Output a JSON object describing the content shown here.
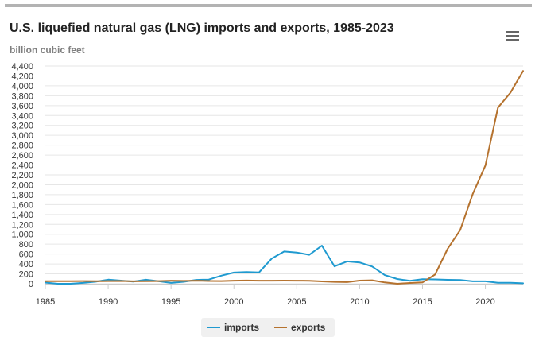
{
  "chart_data": {
    "type": "line",
    "title": "U.S. liquefied natural gas (LNG) imports and exports, 1985-2023",
    "ylabel": "billion cubic feet",
    "xlabel": "",
    "x": [
      1985,
      1986,
      1987,
      1988,
      1989,
      1990,
      1991,
      1992,
      1993,
      1994,
      1995,
      1996,
      1997,
      1998,
      1999,
      2000,
      2001,
      2002,
      2003,
      2004,
      2005,
      2006,
      2007,
      2008,
      2009,
      2010,
      2011,
      2012,
      2013,
      2014,
      2015,
      2016,
      2017,
      2018,
      2019,
      2020,
      2021,
      2022,
      2023
    ],
    "xlim": [
      1985,
      2023
    ],
    "ylim": [
      0,
      4400
    ],
    "x_ticks": [
      1985,
      1990,
      1995,
      2000,
      2005,
      2010,
      2015,
      2020
    ],
    "y_ticks": [
      0,
      200,
      400,
      600,
      800,
      1000,
      1200,
      1400,
      1600,
      1800,
      2000,
      2200,
      2400,
      2600,
      2800,
      3000,
      3200,
      3400,
      3600,
      3800,
      4000,
      4200,
      4400
    ],
    "x_tick_labels": [
      "1985",
      "1990",
      "1995",
      "2000",
      "2005",
      "2010",
      "2015",
      "2020"
    ],
    "y_tick_labels": [
      "0",
      "200",
      "400",
      "600",
      "800",
      "1,000",
      "1,200",
      "1,400",
      "1,600",
      "1,800",
      "2,000",
      "2,200",
      "2,400",
      "2,600",
      "2,800",
      "3,000",
      "3,200",
      "3,400",
      "3,600",
      "3,800",
      "4,000",
      "4,200",
      "4,400"
    ],
    "grid": true,
    "legend_position": "bottom-center",
    "series": [
      {
        "name": "imports",
        "color": "#1f9ad0",
        "values": [
          24,
          0,
          0,
          18,
          42,
          84,
          64,
          43,
          82,
          51,
          18,
          40,
          78,
          85,
          163,
          226,
          238,
          229,
          507,
          652,
          631,
          584,
          771,
          352,
          452,
          431,
          349,
          175,
          97,
          59,
          91,
          88,
          80,
          77,
          50,
          50,
          20,
          20,
          10
        ]
      },
      {
        "name": "exports",
        "color": "#b5722e",
        "values": [
          53,
          52,
          53,
          55,
          51,
          55,
          56,
          50,
          51,
          54,
          62,
          58,
          62,
          56,
          54,
          63,
          66,
          63,
          62,
          64,
          63,
          61,
          48,
          39,
          33,
          65,
          70,
          28,
          0,
          16,
          28,
          187,
          707,
          1086,
          1814,
          2390,
          3560,
          3864,
          4300
        ]
      }
    ]
  },
  "legend": {
    "imports_label": "imports",
    "exports_label": "exports"
  },
  "menu": {
    "icon": "hamburger-menu-icon"
  }
}
